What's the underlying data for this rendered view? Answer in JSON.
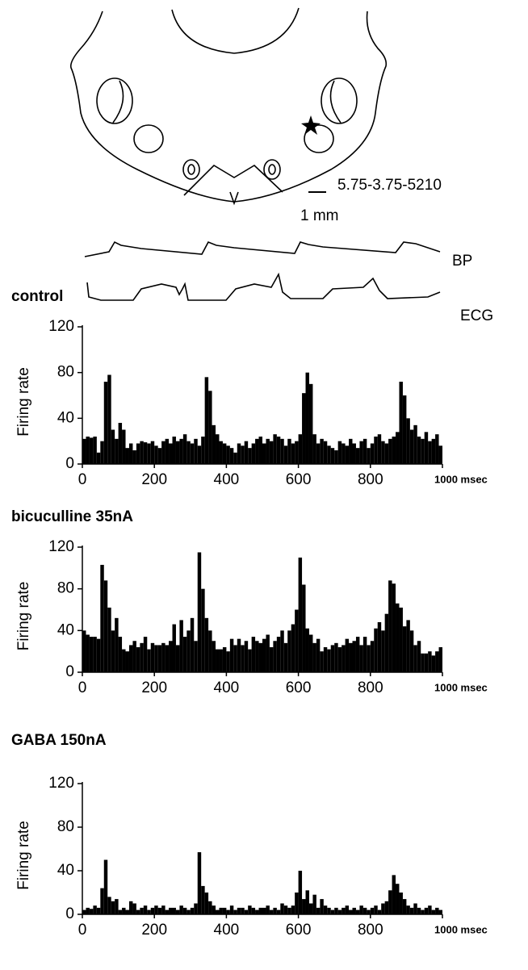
{
  "diagram": {
    "coordinates": "5.75-3.75-5210",
    "scale": "1 mm",
    "bp": "BP",
    "ecg": "ECG"
  },
  "chart_data": [
    {
      "type": "histogram",
      "title": "control",
      "y_label": "Firing rate",
      "color": "#000000",
      "bins": [
        0,
        10,
        20,
        30,
        40,
        50,
        60,
        70,
        80,
        90,
        100,
        110,
        120,
        130,
        140,
        150,
        160,
        170,
        180,
        190,
        200,
        210,
        220,
        230,
        240,
        250,
        260,
        270,
        280,
        290,
        300,
        310,
        320,
        330,
        340,
        350,
        360,
        370,
        380,
        390,
        400,
        410,
        420,
        430,
        440,
        450,
        460,
        470,
        480,
        490,
        500,
        510,
        520,
        530,
        540,
        550,
        560,
        570,
        580,
        590,
        600,
        610,
        620,
        630,
        640,
        650,
        660,
        670,
        680,
        690,
        700,
        710,
        720,
        730,
        740,
        750,
        760,
        770,
        780,
        790,
        800,
        810,
        820,
        830,
        840,
        850,
        860,
        870,
        880,
        890,
        900,
        910,
        920,
        930,
        940,
        950,
        960,
        970,
        980,
        990,
        1000
      ],
      "values": [
        22,
        24,
        23,
        24,
        10,
        20,
        72,
        78,
        30,
        22,
        36,
        30,
        14,
        18,
        12,
        18,
        20,
        19,
        18,
        20,
        16,
        14,
        20,
        22,
        18,
        24,
        20,
        22,
        26,
        20,
        18,
        22,
        16,
        24,
        76,
        64,
        34,
        26,
        20,
        18,
        16,
        14,
        10,
        18,
        16,
        20,
        14,
        18,
        22,
        24,
        18,
        22,
        20,
        26,
        24,
        22,
        16,
        22,
        18,
        20,
        26,
        62,
        80,
        70,
        26,
        18,
        22,
        20,
        16,
        14,
        12,
        20,
        18,
        16,
        22,
        18,
        14,
        20,
        22,
        14,
        18,
        24,
        26,
        20,
        18,
        22,
        24,
        28,
        72,
        60,
        40,
        30,
        34,
        24,
        22,
        28,
        20,
        22,
        26,
        16
      ],
      "xlim": [
        0,
        1000
      ],
      "ylim": [
        0,
        120
      ],
      "yticks": [
        0,
        40,
        80,
        120
      ],
      "xticks": [
        0,
        200,
        400,
        600,
        800,
        {
          "value": 1000,
          "label": "1000 msec"
        }
      ]
    },
    {
      "type": "histogram",
      "title": "bicuculline   35nA",
      "y_label": "Firing rate",
      "color": "#000000",
      "bins": [
        0,
        10,
        20,
        30,
        40,
        50,
        60,
        70,
        80,
        90,
        100,
        110,
        120,
        130,
        140,
        150,
        160,
        170,
        180,
        190,
        200,
        210,
        220,
        230,
        240,
        250,
        260,
        270,
        280,
        290,
        300,
        310,
        320,
        330,
        340,
        350,
        360,
        370,
        380,
        390,
        400,
        410,
        420,
        430,
        440,
        450,
        460,
        470,
        480,
        490,
        500,
        510,
        520,
        530,
        540,
        550,
        560,
        570,
        580,
        590,
        600,
        610,
        620,
        630,
        640,
        650,
        660,
        670,
        680,
        690,
        700,
        710,
        720,
        730,
        740,
        750,
        760,
        770,
        780,
        790,
        800,
        810,
        820,
        830,
        840,
        850,
        860,
        870,
        880,
        890,
        900,
        910,
        920,
        930,
        940,
        950,
        960,
        970,
        980,
        990,
        1000
      ],
      "values": [
        40,
        36,
        34,
        34,
        32,
        103,
        88,
        62,
        40,
        52,
        34,
        22,
        20,
        26,
        30,
        24,
        28,
        34,
        22,
        28,
        26,
        26,
        28,
        26,
        30,
        46,
        26,
        50,
        34,
        40,
        52,
        30,
        115,
        80,
        52,
        40,
        30,
        22,
        22,
        24,
        20,
        32,
        26,
        32,
        26,
        30,
        22,
        34,
        30,
        28,
        32,
        36,
        24,
        30,
        34,
        40,
        28,
        40,
        46,
        60,
        110,
        84,
        42,
        36,
        28,
        32,
        20,
        24,
        22,
        26,
        28,
        24,
        26,
        32,
        28,
        30,
        34,
        26,
        34,
        26,
        30,
        42,
        48,
        40,
        56,
        88,
        85,
        66,
        62,
        44,
        50,
        40,
        26,
        30,
        18,
        18,
        20,
        16,
        20,
        24
      ],
      "xlim": [
        0,
        1000
      ],
      "ylim": [
        0,
        120
      ],
      "yticks": [
        0,
        40,
        80,
        120
      ],
      "xticks": [
        0,
        200,
        400,
        600,
        800,
        {
          "value": 1000,
          "label": "1000 msec"
        }
      ]
    },
    {
      "type": "histogram",
      "title": "GABA 150nA",
      "y_label": "Firing rate",
      "color": "#000000",
      "bins": [
        0,
        10,
        20,
        30,
        40,
        50,
        60,
        70,
        80,
        90,
        100,
        110,
        120,
        130,
        140,
        150,
        160,
        170,
        180,
        190,
        200,
        210,
        220,
        230,
        240,
        250,
        260,
        270,
        280,
        290,
        300,
        310,
        320,
        330,
        340,
        350,
        360,
        370,
        380,
        390,
        400,
        410,
        420,
        430,
        440,
        450,
        460,
        470,
        480,
        490,
        500,
        510,
        520,
        530,
        540,
        550,
        560,
        570,
        580,
        590,
        600,
        610,
        620,
        630,
        640,
        650,
        660,
        670,
        680,
        690,
        700,
        710,
        720,
        730,
        740,
        750,
        760,
        770,
        780,
        790,
        800,
        810,
        820,
        830,
        840,
        850,
        860,
        870,
        880,
        890,
        900,
        910,
        920,
        930,
        940,
        950,
        960,
        970,
        980,
        990,
        1000
      ],
      "values": [
        4,
        6,
        5,
        8,
        6,
        24,
        50,
        16,
        12,
        14,
        4,
        6,
        4,
        12,
        10,
        4,
        6,
        8,
        4,
        6,
        8,
        6,
        8,
        4,
        6,
        6,
        4,
        8,
        6,
        4,
        6,
        10,
        57,
        26,
        20,
        12,
        8,
        4,
        6,
        6,
        4,
        8,
        4,
        6,
        6,
        4,
        8,
        6,
        4,
        6,
        6,
        8,
        4,
        6,
        4,
        10,
        8,
        6,
        8,
        20,
        40,
        14,
        22,
        10,
        18,
        6,
        14,
        8,
        6,
        4,
        6,
        4,
        6,
        8,
        4,
        6,
        4,
        8,
        6,
        4,
        6,
        8,
        4,
        10,
        12,
        22,
        36,
        28,
        20,
        14,
        8,
        6,
        10,
        6,
        4,
        6,
        8,
        4,
        6,
        4
      ],
      "xlim": [
        0,
        1000
      ],
      "ylim": [
        0,
        120
      ],
      "yticks": [
        0,
        40,
        80,
        120
      ],
      "xticks": [
        0,
        200,
        400,
        600,
        800,
        {
          "value": 1000,
          "label": "1000 msec"
        }
      ]
    }
  ]
}
